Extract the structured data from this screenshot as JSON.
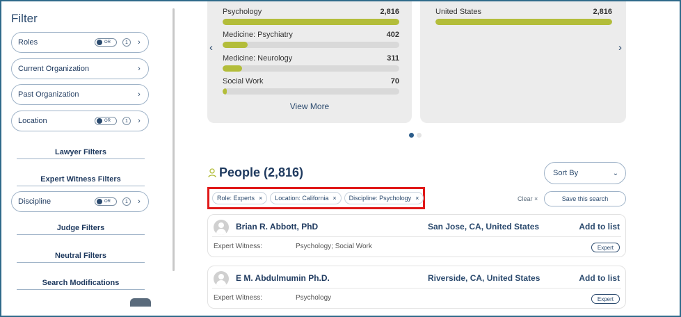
{
  "sidebar": {
    "title": "Filter",
    "pills": [
      {
        "label": "Roles",
        "has_toggle": true,
        "toggle_label": "OR",
        "count": "1"
      },
      {
        "label": "Current Organization",
        "has_toggle": false
      },
      {
        "label": "Past Organization",
        "has_toggle": false
      },
      {
        "label": "Location",
        "has_toggle": true,
        "toggle_label": "OR",
        "count": "1"
      }
    ],
    "sections": {
      "lawyer": "Lawyer Filters",
      "expert": "Expert Witness Filters",
      "judge": "Judge Filters",
      "neutral": "Neutral Filters",
      "search_mods": "Search Modifications"
    },
    "discipline": {
      "label": "Discipline",
      "toggle_label": "OR",
      "count": "1"
    }
  },
  "cards": {
    "left": {
      "rows": [
        {
          "label": "Psychology",
          "value": "2,816",
          "fraction": 1.0
        },
        {
          "label": "Medicine: Psychiatry",
          "value": "402",
          "fraction": 0.143
        },
        {
          "label": "Medicine: Neurology",
          "value": "311",
          "fraction": 0.11
        },
        {
          "label": "Social Work",
          "value": "70",
          "fraction": 0.025
        }
      ],
      "view_more": "View More"
    },
    "right": {
      "rows": [
        {
          "label": "United States",
          "value": "2,816",
          "fraction": 1.0
        }
      ]
    },
    "prev_arrow": "‹",
    "next_arrow": "›"
  },
  "people": {
    "title": "People (2,816)",
    "sort_label": "Sort By",
    "chips": [
      {
        "label": "Role: Experts"
      },
      {
        "label": "Location: California"
      },
      {
        "label": "Discipline: Psychology"
      }
    ],
    "clear_label": "Clear ×",
    "save_label": "Save this search"
  },
  "results": [
    {
      "name": "Brian R. Abbott, PhD",
      "location": "San Jose, CA, United States",
      "add_label": "Add to list",
      "role": "Expert Witness:",
      "disciplines": "Psychology; Social Work",
      "badge": "Expert"
    },
    {
      "name": "E M. Abdulmumin Ph.D.",
      "location": "Riverside, CA, United States",
      "add_label": "Add to list",
      "role": "Expert Witness:",
      "disciplines": "Psychology",
      "badge": "Expert"
    }
  ],
  "colors": {
    "accent": "#1f3a5f",
    "bar_fill": "#b3bd3a",
    "highlight_border": "#e01919"
  }
}
